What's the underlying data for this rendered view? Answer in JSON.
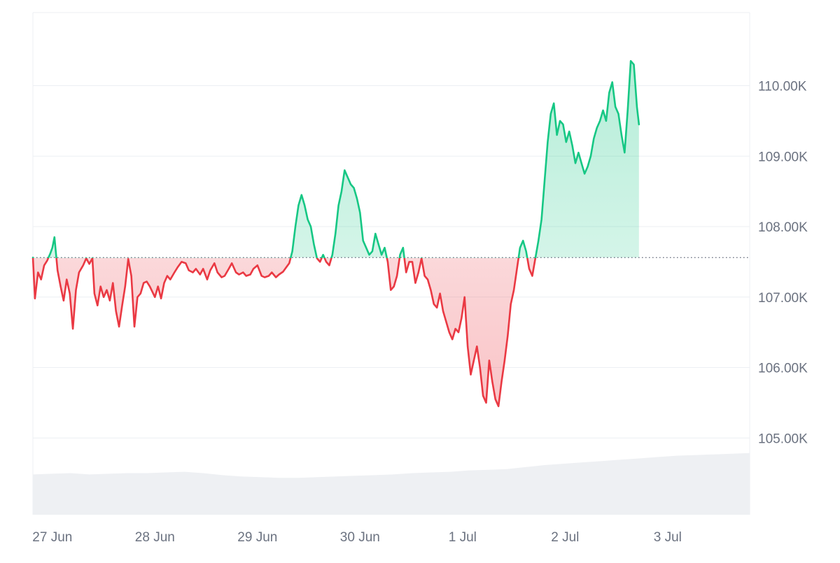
{
  "chart_data": {
    "type": "area",
    "baseline": 107560,
    "ylim": [
      104000,
      111000
    ],
    "y_ticks": [
      {
        "value": 110000,
        "label": "110.00K"
      },
      {
        "value": 109000,
        "label": "109.00K"
      },
      {
        "value": 108000,
        "label": "108.00K"
      },
      {
        "value": 107000,
        "label": "107.00K"
      },
      {
        "value": 106000,
        "label": "106.00K"
      },
      {
        "value": 105000,
        "label": "105.00K"
      }
    ],
    "x_range": [
      26.81,
      33.8
    ],
    "x_ticks": [
      {
        "value": 27,
        "label": "27 Jun"
      },
      {
        "value": 28,
        "label": "28 Jun"
      },
      {
        "value": 29,
        "label": "29 Jun"
      },
      {
        "value": 30,
        "label": "30 Jun"
      },
      {
        "value": 31,
        "label": "1 Jul"
      },
      {
        "value": 32,
        "label": "2 Jul"
      },
      {
        "value": 33,
        "label": "3 Jul"
      }
    ],
    "grid": true,
    "colors": {
      "above": "#16c784",
      "below": "#ea3943",
      "volume": "#eef0f3",
      "grid": "#eceff3"
    },
    "series": [
      {
        "values": [
          [
            26.81,
            107560
          ],
          [
            26.83,
            106980
          ],
          [
            26.86,
            107350
          ],
          [
            26.89,
            107250
          ],
          [
            26.92,
            107450
          ],
          [
            26.95,
            107520
          ],
          [
            26.98,
            107620
          ],
          [
            27.0,
            107700
          ],
          [
            27.02,
            107850
          ],
          [
            27.05,
            107380
          ],
          [
            27.08,
            107150
          ],
          [
            27.11,
            106950
          ],
          [
            27.14,
            107250
          ],
          [
            27.17,
            107050
          ],
          [
            27.2,
            106550
          ],
          [
            27.23,
            107100
          ],
          [
            27.26,
            107350
          ],
          [
            27.3,
            107450
          ],
          [
            27.33,
            107550
          ],
          [
            27.36,
            107470
          ],
          [
            27.39,
            107550
          ],
          [
            27.41,
            107050
          ],
          [
            27.44,
            106880
          ],
          [
            27.47,
            107150
          ],
          [
            27.5,
            107000
          ],
          [
            27.53,
            107100
          ],
          [
            27.56,
            106950
          ],
          [
            27.59,
            107200
          ],
          [
            27.62,
            106800
          ],
          [
            27.65,
            106580
          ],
          [
            27.68,
            106880
          ],
          [
            27.71,
            107150
          ],
          [
            27.74,
            107540
          ],
          [
            27.77,
            107300
          ],
          [
            27.8,
            106580
          ],
          [
            27.83,
            107000
          ],
          [
            27.86,
            107050
          ],
          [
            27.89,
            107200
          ],
          [
            27.92,
            107220
          ],
          [
            27.95,
            107150
          ],
          [
            28.0,
            107000
          ],
          [
            28.03,
            107150
          ],
          [
            28.06,
            106980
          ],
          [
            28.09,
            107200
          ],
          [
            28.12,
            107300
          ],
          [
            28.15,
            107250
          ],
          [
            28.19,
            107350
          ],
          [
            28.22,
            107420
          ],
          [
            28.26,
            107500
          ],
          [
            28.3,
            107480
          ],
          [
            28.33,
            107380
          ],
          [
            28.37,
            107350
          ],
          [
            28.4,
            107400
          ],
          [
            28.44,
            107320
          ],
          [
            28.47,
            107400
          ],
          [
            28.51,
            107250
          ],
          [
            28.54,
            107380
          ],
          [
            28.58,
            107480
          ],
          [
            28.61,
            107350
          ],
          [
            28.65,
            107280
          ],
          [
            28.68,
            107300
          ],
          [
            28.72,
            107400
          ],
          [
            28.75,
            107480
          ],
          [
            28.79,
            107350
          ],
          [
            28.82,
            107320
          ],
          [
            28.86,
            107350
          ],
          [
            28.89,
            107300
          ],
          [
            28.93,
            107320
          ],
          [
            28.96,
            107400
          ],
          [
            29.0,
            107450
          ],
          [
            29.04,
            107300
          ],
          [
            29.07,
            107280
          ],
          [
            29.11,
            107300
          ],
          [
            29.14,
            107350
          ],
          [
            29.18,
            107280
          ],
          [
            29.21,
            107320
          ],
          [
            29.25,
            107360
          ],
          [
            29.28,
            107420
          ],
          [
            29.31,
            107480
          ],
          [
            29.34,
            107650
          ],
          [
            29.37,
            108000
          ],
          [
            29.4,
            108300
          ],
          [
            29.43,
            108450
          ],
          [
            29.46,
            108300
          ],
          [
            29.49,
            108100
          ],
          [
            29.52,
            108000
          ],
          [
            29.55,
            107750
          ],
          [
            29.58,
            107550
          ],
          [
            29.61,
            107500
          ],
          [
            29.64,
            107600
          ],
          [
            29.67,
            107500
          ],
          [
            29.7,
            107450
          ],
          [
            29.73,
            107600
          ],
          [
            29.76,
            107900
          ],
          [
            29.79,
            108300
          ],
          [
            29.82,
            108500
          ],
          [
            29.85,
            108800
          ],
          [
            29.88,
            108700
          ],
          [
            29.91,
            108600
          ],
          [
            29.94,
            108550
          ],
          [
            29.97,
            108400
          ],
          [
            30.0,
            108200
          ],
          [
            30.03,
            107800
          ],
          [
            30.06,
            107700
          ],
          [
            30.09,
            107600
          ],
          [
            30.12,
            107650
          ],
          [
            30.15,
            107900
          ],
          [
            30.18,
            107750
          ],
          [
            30.21,
            107600
          ],
          [
            30.24,
            107700
          ],
          [
            30.27,
            107500
          ],
          [
            30.3,
            107100
          ],
          [
            30.33,
            107150
          ],
          [
            30.36,
            107300
          ],
          [
            30.39,
            107600
          ],
          [
            30.42,
            107700
          ],
          [
            30.45,
            107350
          ],
          [
            30.48,
            107500
          ],
          [
            30.51,
            107500
          ],
          [
            30.54,
            107200
          ],
          [
            30.57,
            107350
          ],
          [
            30.6,
            107550
          ],
          [
            30.63,
            107300
          ],
          [
            30.66,
            107250
          ],
          [
            30.69,
            107100
          ],
          [
            30.72,
            106900
          ],
          [
            30.75,
            106850
          ],
          [
            30.78,
            107050
          ],
          [
            30.81,
            106800
          ],
          [
            30.84,
            106650
          ],
          [
            30.87,
            106500
          ],
          [
            30.9,
            106400
          ],
          [
            30.93,
            106550
          ],
          [
            30.96,
            106500
          ],
          [
            30.99,
            106700
          ],
          [
            31.02,
            107000
          ],
          [
            31.05,
            106300
          ],
          [
            31.08,
            105900
          ],
          [
            31.11,
            106100
          ],
          [
            31.14,
            106300
          ],
          [
            31.17,
            106000
          ],
          [
            31.2,
            105600
          ],
          [
            31.23,
            105500
          ],
          [
            31.26,
            106100
          ],
          [
            31.29,
            105800
          ],
          [
            31.32,
            105550
          ],
          [
            31.35,
            105450
          ],
          [
            31.38,
            105800
          ],
          [
            31.41,
            106100
          ],
          [
            31.44,
            106450
          ],
          [
            31.47,
            106900
          ],
          [
            31.5,
            107100
          ],
          [
            31.53,
            107400
          ],
          [
            31.56,
            107700
          ],
          [
            31.59,
            107800
          ],
          [
            31.62,
            107650
          ],
          [
            31.65,
            107400
          ],
          [
            31.68,
            107300
          ],
          [
            31.71,
            107550
          ],
          [
            31.74,
            107800
          ],
          [
            31.77,
            108100
          ],
          [
            31.8,
            108650
          ],
          [
            31.83,
            109200
          ],
          [
            31.86,
            109600
          ],
          [
            31.89,
            109750
          ],
          [
            31.92,
            109300
          ],
          [
            31.95,
            109500
          ],
          [
            31.98,
            109450
          ],
          [
            32.01,
            109200
          ],
          [
            32.04,
            109350
          ],
          [
            32.07,
            109150
          ],
          [
            32.1,
            108900
          ],
          [
            32.13,
            109050
          ],
          [
            32.16,
            108900
          ],
          [
            32.19,
            108750
          ],
          [
            32.22,
            108850
          ],
          [
            32.25,
            109000
          ],
          [
            32.28,
            109250
          ],
          [
            32.31,
            109400
          ],
          [
            32.34,
            109500
          ],
          [
            32.37,
            109650
          ],
          [
            32.4,
            109500
          ],
          [
            32.43,
            109900
          ],
          [
            32.46,
            110050
          ],
          [
            32.49,
            109700
          ],
          [
            32.52,
            109600
          ],
          [
            32.55,
            109300
          ],
          [
            32.58,
            109050
          ],
          [
            32.61,
            109650
          ],
          [
            32.64,
            110350
          ],
          [
            32.67,
            110300
          ],
          [
            32.7,
            109700
          ],
          [
            32.72,
            109450
          ]
        ]
      }
    ],
    "volume": [
      [
        26.81,
        0.6
      ],
      [
        26.99,
        0.61
      ],
      [
        27.18,
        0.62
      ],
      [
        27.36,
        0.6
      ],
      [
        27.55,
        0.61
      ],
      [
        27.73,
        0.62
      ],
      [
        27.92,
        0.62
      ],
      [
        28.1,
        0.63
      ],
      [
        28.29,
        0.64
      ],
      [
        28.47,
        0.62
      ],
      [
        28.66,
        0.59
      ],
      [
        28.84,
        0.57
      ],
      [
        29.03,
        0.56
      ],
      [
        29.21,
        0.55
      ],
      [
        29.4,
        0.55
      ],
      [
        29.58,
        0.56
      ],
      [
        29.77,
        0.57
      ],
      [
        29.95,
        0.58
      ],
      [
        30.14,
        0.59
      ],
      [
        30.32,
        0.6
      ],
      [
        30.51,
        0.62
      ],
      [
        30.69,
        0.63
      ],
      [
        30.88,
        0.64
      ],
      [
        31.06,
        0.66
      ],
      [
        31.25,
        0.67
      ],
      [
        31.43,
        0.68
      ],
      [
        31.62,
        0.71
      ],
      [
        31.8,
        0.74
      ],
      [
        31.99,
        0.76
      ],
      [
        32.17,
        0.78
      ],
      [
        32.36,
        0.8
      ],
      [
        32.54,
        0.82
      ],
      [
        32.73,
        0.84
      ],
      [
        32.91,
        0.86
      ],
      [
        33.1,
        0.88
      ],
      [
        33.28,
        0.89
      ],
      [
        33.47,
        0.9
      ],
      [
        33.65,
        0.91
      ],
      [
        33.8,
        0.92
      ]
    ]
  }
}
